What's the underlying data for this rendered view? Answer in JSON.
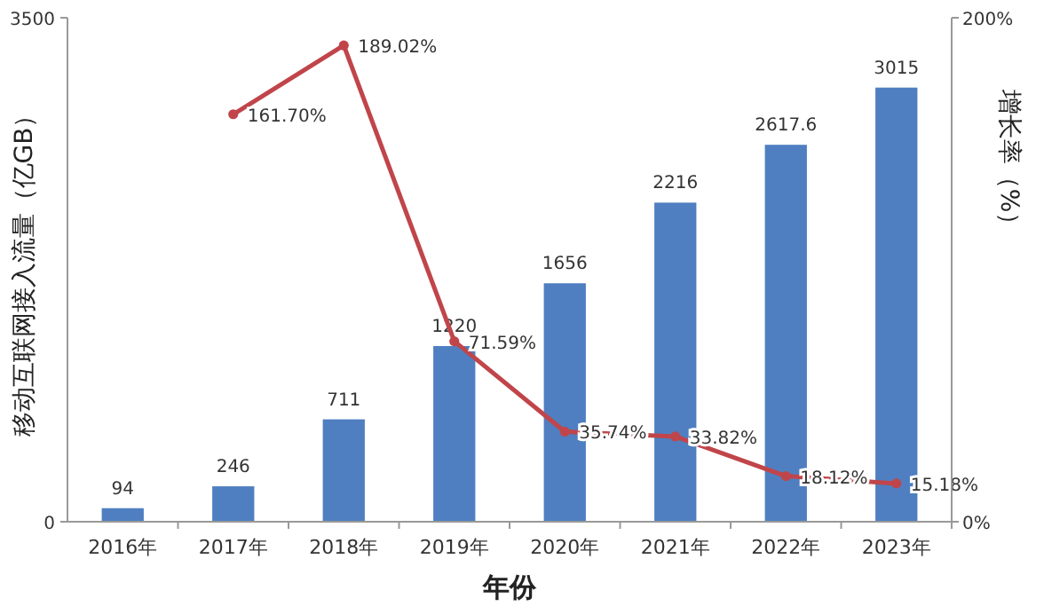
{
  "chart_data": {
    "type": "bar",
    "categories": [
      "2016年",
      "2017年",
      "2018年",
      "2019年",
      "2020年",
      "2021年",
      "2022年",
      "2023年"
    ],
    "xlabel": "年份",
    "ylabel": "移动互联网接入流量（亿GB）",
    "y2label": "增长率（%）",
    "ylim": [
      0,
      3500
    ],
    "yticks": [
      0,
      3500
    ],
    "y2lim": [
      0,
      200
    ],
    "y2ticks": [
      {
        "value": 0,
        "label": "0%"
      },
      {
        "value": 200,
        "label": "200%"
      }
    ],
    "grid": false,
    "marker": "circle",
    "line_style": "solid",
    "series": [
      {
        "color": "#4f7fc1",
        "values": [
          94,
          246,
          711,
          1220,
          1656,
          2216,
          2617.6,
          3015
        ],
        "value_labels": [
          "94",
          "246",
          "711",
          "1220",
          "1656",
          "2216",
          "2617.6",
          "3015"
        ]
      },
      {
        "type": "line",
        "axis": "y2",
        "color": "#c0454a",
        "values": [
          null,
          161.7,
          189.02,
          71.59,
          35.74,
          33.82,
          18.12,
          15.18
        ],
        "value_labels": [
          null,
          "161.70%",
          "189.02%",
          "71.59%",
          "35.74%",
          "33.82%",
          "18.12%",
          "15.18%"
        ]
      }
    ]
  }
}
